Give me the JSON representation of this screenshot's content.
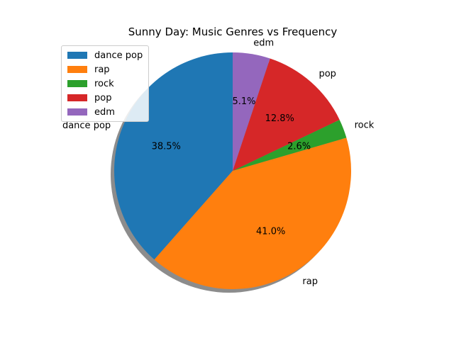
{
  "chart_data": {
    "type": "pie",
    "title": "Sunny Day: Music Genres vs Frequency",
    "categories": [
      "dance pop",
      "rap",
      "rock",
      "pop",
      "edm"
    ],
    "values": [
      38.5,
      41.0,
      2.6,
      12.8,
      5.1
    ],
    "value_labels": [
      "38.5%",
      "41.0%",
      "2.6%",
      "12.8%",
      "5.1%"
    ],
    "colors": [
      "#1f77b4",
      "#ff7f0e",
      "#2ca02c",
      "#d62728",
      "#9467bd"
    ],
    "start_angle_deg": 90,
    "direction": "counterclockwise",
    "shadow": true,
    "legend_placement": "upper-left"
  }
}
